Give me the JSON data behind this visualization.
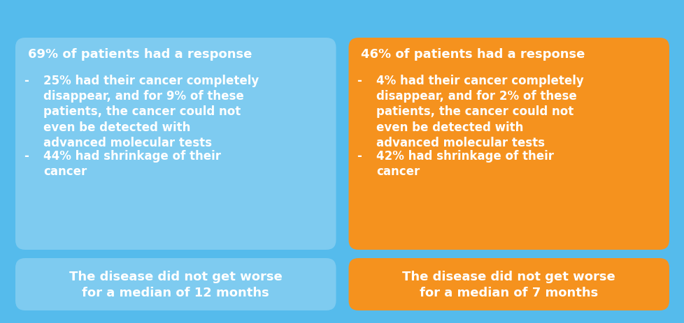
{
  "bg_color": "#55bbec",
  "left_box_color": "#7ecbf0",
  "right_box_color": "#f5921e",
  "text_color": "#ffffff",
  "left_header": "69% of patients had a response",
  "right_header": "46% of patients had a response",
  "left_bullet1": "25% had their cancer completely\ndisappear, and for 9% of these\npatients, the cancer could not\neven be detected with\nadvanced molecular tests",
  "left_bullet2": "44% had shrinkage of their\ncancer",
  "right_bullet1": "4% had their cancer completely\ndisappear, and for 2% of these\npatients, the cancer could not\neven be detected with\nadvanced molecular tests",
  "right_bullet2": "42% had shrinkage of their\ncancer",
  "left_footer": "The disease did not get worse\nfor a median of 12 months",
  "right_footer": "The disease did not get worse\nfor a median of 7 months",
  "font_size_header": 13,
  "font_size_body": 12,
  "font_size_footer": 13
}
